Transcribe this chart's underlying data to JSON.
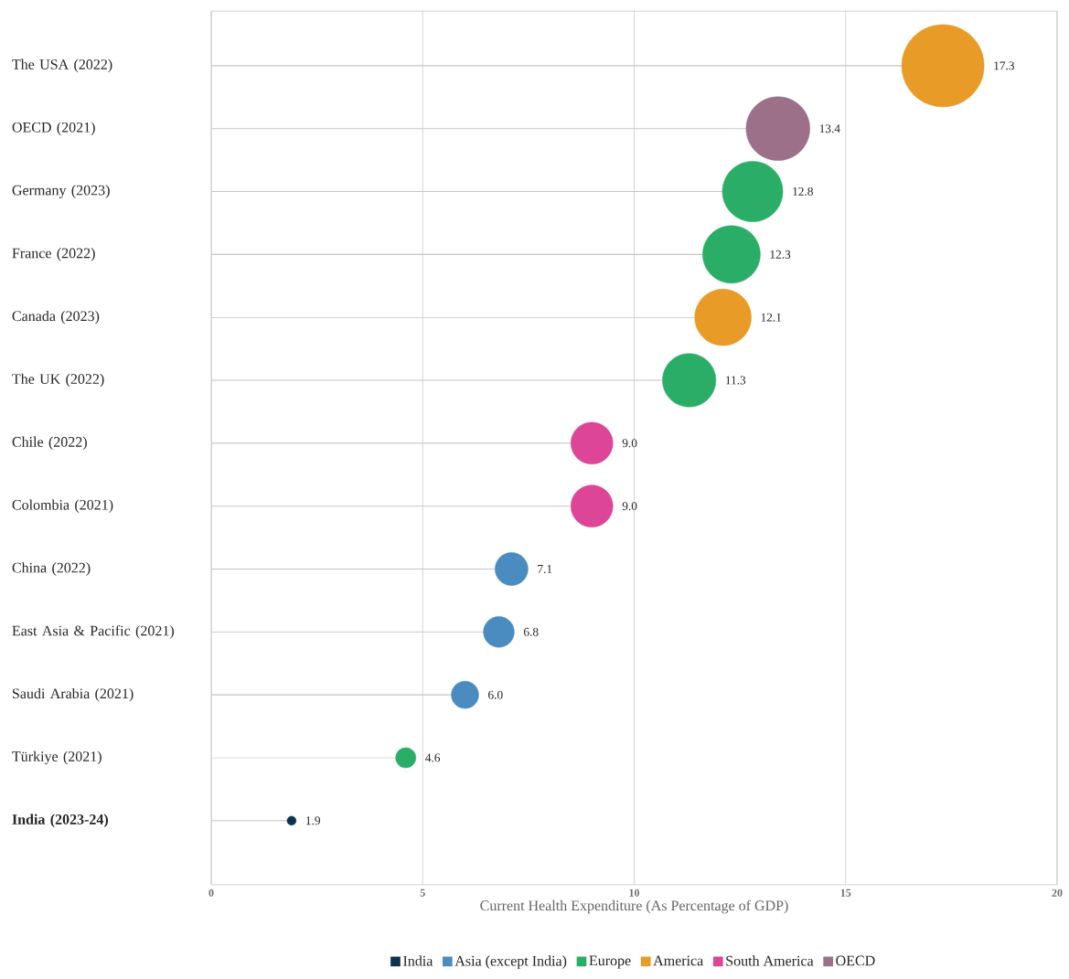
{
  "chart_data": {
    "type": "lollipop",
    "orientation": "horizontal",
    "xlabel": "Current Health Expenditure (As Percentage of GDP)",
    "categories": [
      "The USA (2022)",
      "OECD (2021)",
      "Germany (2023)",
      "France (2022)",
      "Canada (2023)",
      "The UK (2022)",
      "Chile (2022)",
      "Colombia (2021)",
      "China (2022)",
      "East Asia & Pacific (2021)",
      "Saudi Arabia (2021)",
      "Türkiye (2021)",
      "**India (2023-24)**"
    ],
    "series": [
      {
        "name": "India",
        "color": "#0b3251",
        "values": [
          null,
          null,
          null,
          null,
          null,
          null,
          null,
          null,
          null,
          null,
          null,
          null,
          1.9
        ],
        "sizes": [
          null,
          null,
          null,
          null,
          null,
          null,
          null,
          null,
          null,
          null,
          null,
          null,
          0.012
        ],
        "value_labels": [
          null,
          null,
          null,
          null,
          null,
          null,
          null,
          null,
          null,
          null,
          null,
          null,
          "1.9"
        ]
      },
      {
        "name": "Asia (except India)",
        "color": "#4a8cbf",
        "values": [
          null,
          null,
          null,
          null,
          null,
          null,
          null,
          null,
          7.1,
          6.8,
          6.0,
          null,
          null
        ],
        "sizes": [
          null,
          null,
          null,
          null,
          null,
          null,
          null,
          null,
          0.16,
          0.14,
          0.11,
          null,
          null
        ],
        "value_labels": [
          null,
          null,
          null,
          null,
          null,
          null,
          null,
          null,
          "7.1",
          "6.8",
          "6.0",
          null,
          null
        ]
      },
      {
        "name": "Europe",
        "color": "#2aae67",
        "values": [
          null,
          null,
          12.8,
          12.3,
          null,
          11.3,
          null,
          null,
          null,
          null,
          null,
          4.6,
          null
        ],
        "sizes": [
          null,
          null,
          0.54,
          0.49,
          null,
          0.42,
          null,
          null,
          null,
          null,
          null,
          0.06,
          null
        ],
        "value_labels": [
          null,
          null,
          "12.8",
          "12.3",
          null,
          "11.3",
          null,
          null,
          null,
          null,
          null,
          "4.6",
          null
        ]
      },
      {
        "name": "America",
        "color": "#e89b26",
        "values": [
          17.3,
          null,
          null,
          null,
          12.1,
          null,
          null,
          null,
          null,
          null,
          null,
          null,
          null
        ],
        "sizes": [
          1,
          null,
          null,
          null,
          0.47,
          null,
          null,
          null,
          null,
          null,
          null,
          null,
          null
        ],
        "value_labels": [
          "17.3",
          null,
          null,
          null,
          "12.1",
          null,
          null,
          null,
          null,
          null,
          null,
          null,
          null
        ]
      },
      {
        "name": "South America",
        "color": "#dc4598",
        "values": [
          null,
          null,
          null,
          null,
          null,
          null,
          9.0,
          9.0,
          null,
          null,
          null,
          null,
          null
        ],
        "sizes": [
          null,
          null,
          null,
          null,
          null,
          null,
          0.26,
          0.26,
          null,
          null,
          null,
          null,
          null
        ],
        "value_labels": [
          null,
          null,
          null,
          null,
          null,
          null,
          "9.0",
          "9.0",
          null,
          null,
          null,
          null,
          null
        ]
      },
      {
        "name": "OECD",
        "color": "#9c7089",
        "values": [
          null,
          13.4,
          null,
          null,
          null,
          null,
          null,
          null,
          null,
          null,
          null,
          null,
          null
        ],
        "sizes": [
          null,
          0.6,
          null,
          null,
          null,
          null,
          null,
          null,
          null,
          null,
          null,
          null,
          null
        ],
        "value_labels": [
          null,
          "13.4",
          null,
          null,
          null,
          null,
          null,
          null,
          null,
          null,
          null,
          null,
          null
        ]
      }
    ],
    "xlim": [
      0,
      20
    ],
    "xticks": [
      0,
      5,
      10,
      15,
      20
    ],
    "grid": "x",
    "legend": "bottom"
  }
}
